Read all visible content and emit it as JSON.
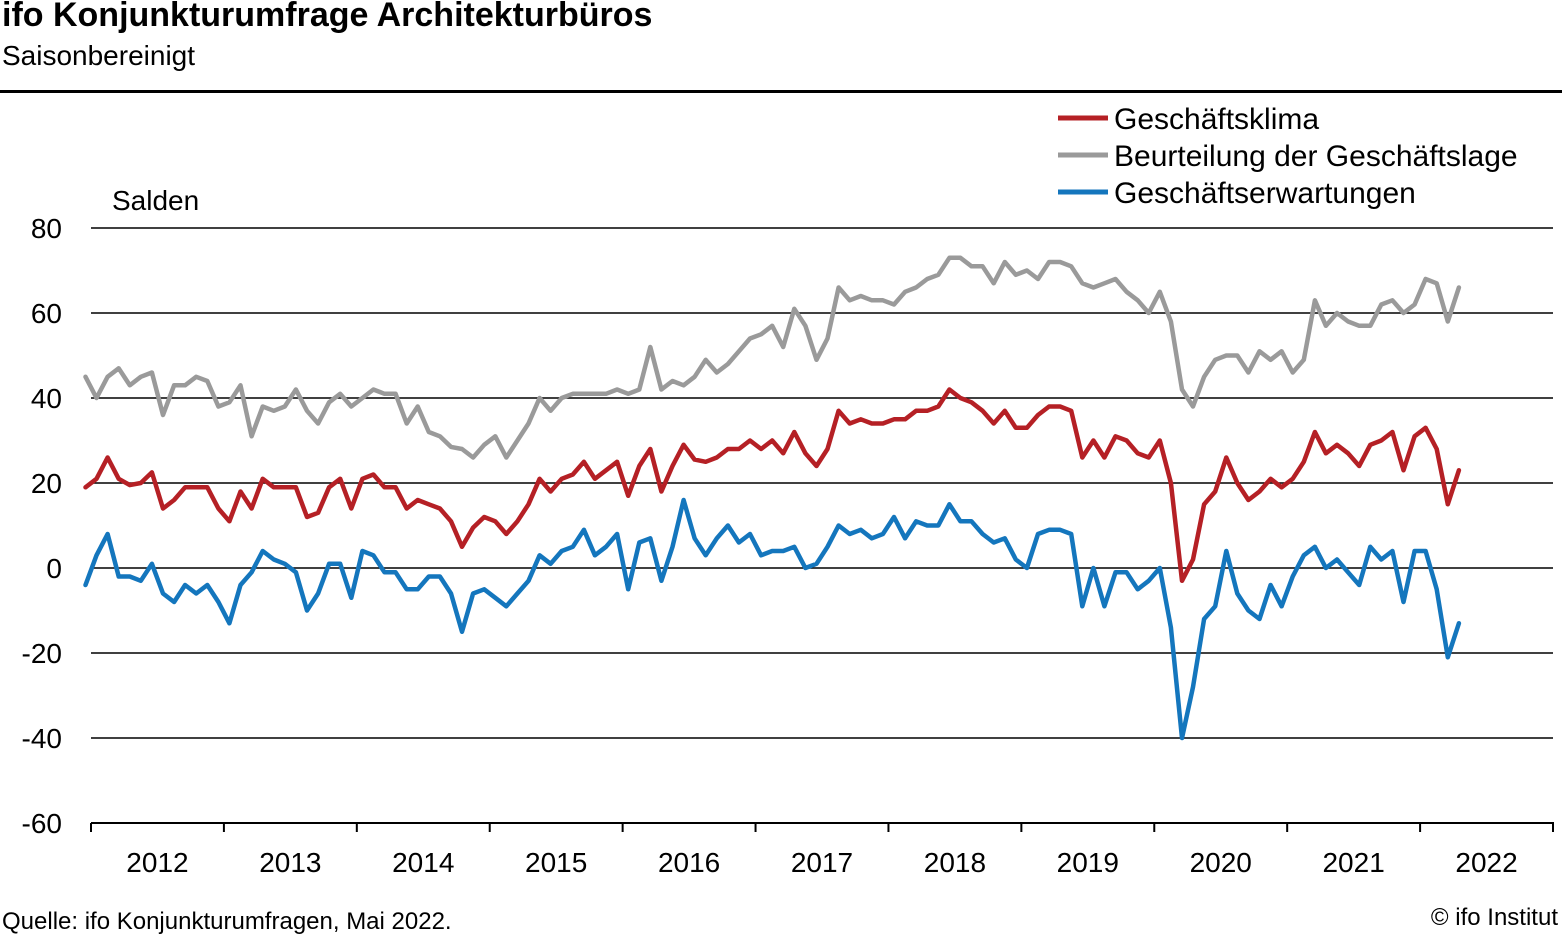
{
  "header": {
    "title": "ifo Konjunkturumfrage Architekturbüros",
    "subtitle": "Saisonbereinigt"
  },
  "footer": {
    "source": "Quelle: ifo Konjunkturumfragen, Mai 2022.",
    "copyright": "© ifo Institut"
  },
  "chart_data": {
    "type": "line",
    "ylabel": "Salden",
    "ylim": [
      -60,
      80
    ],
    "yticks": [
      80,
      60,
      40,
      20,
      0,
      -20,
      -40,
      -60
    ],
    "x_start": "2011-12",
    "x_end": "2022-05",
    "year_labels": [
      "2012",
      "2013",
      "2014",
      "2015",
      "2016",
      "2017",
      "2018",
      "2019",
      "2020",
      "2021",
      "2022"
    ],
    "grid": true,
    "legend_position": "top-right",
    "series": [
      {
        "name": "Geschäftsklima",
        "color": "#b52025",
        "values": [
          19,
          21,
          26,
          21,
          19.5,
          20,
          22.5,
          14,
          16,
          19,
          19,
          19,
          14,
          11,
          18,
          14,
          21,
          19,
          19,
          19,
          12,
          13,
          19,
          21,
          14,
          21,
          22,
          19,
          19,
          14,
          16,
          15,
          14,
          11,
          5,
          9.5,
          12,
          11,
          8,
          11,
          15,
          21,
          18,
          21,
          22,
          25,
          21,
          23,
          25,
          17,
          24,
          28,
          18,
          24,
          29,
          25.5,
          25,
          26,
          28,
          28,
          30,
          28,
          30,
          27,
          32,
          27,
          24,
          28,
          37,
          34,
          35,
          34,
          34,
          35,
          35,
          37,
          37,
          38,
          42,
          40,
          39,
          37,
          34,
          37,
          33,
          33,
          36,
          38,
          38,
          37,
          26,
          30,
          26,
          31,
          30,
          27,
          26,
          30,
          20,
          -3,
          2,
          15,
          18,
          26,
          20,
          16,
          18,
          21,
          19,
          21,
          25,
          32,
          27,
          29,
          27,
          24,
          29,
          30,
          32,
          23,
          31,
          33,
          28,
          15,
          23
        ]
      },
      {
        "name": "Beurteilung der Geschäftslage",
        "color": "#9a9a9a",
        "values": [
          45,
          40,
          45,
          47,
          43,
          45,
          46,
          36,
          43,
          43,
          45,
          44,
          38,
          39,
          43,
          31,
          38,
          37,
          38,
          42,
          37,
          34,
          39,
          41,
          38,
          40,
          42,
          41,
          41,
          34,
          38,
          32,
          31,
          28.5,
          28,
          26,
          29,
          31,
          26,
          30,
          34,
          40,
          37,
          40,
          41,
          41,
          41,
          41,
          42,
          41,
          42,
          52,
          42,
          44,
          43,
          45,
          49,
          46,
          48,
          51,
          54,
          55,
          57,
          52,
          61,
          57,
          49,
          54,
          66,
          63,
          64,
          63,
          63,
          62,
          65,
          66,
          68,
          69,
          73,
          73,
          71,
          71,
          67,
          72,
          69,
          70,
          68,
          72,
          72,
          71,
          67,
          66,
          67,
          68,
          65,
          63,
          60,
          65,
          58,
          42,
          38,
          45,
          49,
          50,
          50,
          46,
          51,
          49,
          51,
          46,
          49,
          63,
          57,
          60,
          58,
          57,
          57,
          62,
          63,
          60,
          62,
          68,
          67,
          58,
          66
        ]
      },
      {
        "name": "Geschäftserwartungen",
        "color": "#1476bd",
        "values": [
          -4,
          3,
          8,
          -2,
          -2,
          -3,
          1,
          -6,
          -8,
          -4,
          -6,
          -4,
          -8,
          -13,
          -4,
          -1,
          4,
          2,
          1,
          -1,
          -10,
          -6,
          1,
          1,
          -7,
          4,
          3,
          -1,
          -1,
          -5,
          -5,
          -2,
          -2,
          -6,
          -15,
          -6,
          -5,
          -7,
          -9,
          -6,
          -3,
          3,
          1,
          4,
          5,
          9,
          3,
          5,
          8,
          -5,
          6,
          7,
          -3,
          5,
          16,
          7,
          3,
          7,
          10,
          6,
          8,
          3,
          4,
          4,
          5,
          0,
          1,
          5,
          10,
          8,
          9,
          7,
          8,
          12,
          7,
          11,
          10,
          10,
          15,
          11,
          11,
          8,
          6,
          7,
          2,
          0,
          8,
          9,
          9,
          8,
          -9,
          0,
          -9,
          -1,
          -1,
          -5,
          -3,
          0,
          -14,
          -40,
          -28,
          -12,
          -9,
          4,
          -6,
          -10,
          -12,
          -4,
          -9,
          -2,
          3,
          5,
          0,
          2,
          -1,
          -4,
          5,
          2,
          4,
          -8,
          4,
          4,
          -5,
          -21,
          -13
        ]
      }
    ]
  }
}
